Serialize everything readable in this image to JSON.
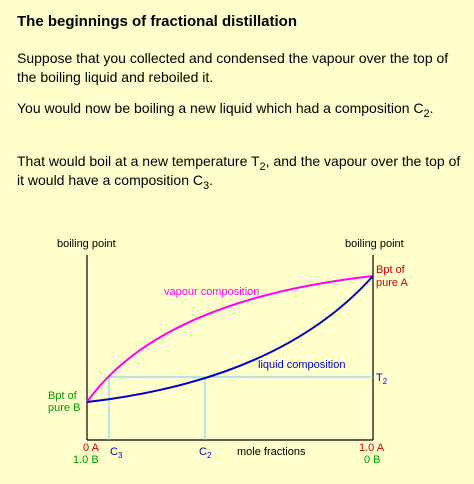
{
  "heading": "The beginnings of fractional distillation",
  "paragraphs": {
    "p1": "Suppose that you collected and condensed the vapour over the top of the boiling liquid and reboiled it.",
    "p2_main": "You would now be boiling a new liquid which had a composition C",
    "p2_sub": "2",
    "p2_end": ".",
    "p3_main": "That would boil at a new temperature T",
    "p3_sub": "2",
    "p3_mid": ", and the vapour over the top of it would have a composition C",
    "p3_sub2": "3",
    "p3_end": "."
  },
  "diagram": {
    "left_axis_label": "boiling point",
    "right_axis_label": "boiling point",
    "bpt_a_line1": "Bpt of",
    "bpt_a_line2": "pure A",
    "bpt_b_line1": "Bpt of",
    "bpt_b_line2": "pure B",
    "vapour_label": "vapour composition",
    "liquid_label": "liquid composition",
    "t2_main": "T",
    "t2_sub": "2",
    "left_a": "0 A",
    "left_b": "1.0 B",
    "right_a": "1.0 A",
    "right_b": "0 B",
    "c3_main": "C",
    "c3_sub": "3",
    "c2_main": "C",
    "c2_sub": "2",
    "x_axis_label": "mole fractions",
    "colors": {
      "vapour_curve": "#ff00ff",
      "liquid_curve": "#0000cc",
      "tie_lines": "#66ccff",
      "bpt_a_label": "#cc0000",
      "bpt_b_label": "#009900",
      "component_a": "#cc0000",
      "component_b": "#009900",
      "composition_markers": "#0000cc"
    }
  }
}
